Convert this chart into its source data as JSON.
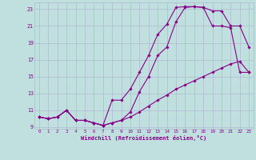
{
  "xlabel": "Windchill (Refroidissement éolien,°C)",
  "xlim": [
    -0.5,
    23.5
  ],
  "ylim": [
    8.8,
    23.8
  ],
  "yticks": [
    9,
    11,
    13,
    15,
    17,
    19,
    21,
    23
  ],
  "xticks": [
    0,
    1,
    2,
    3,
    4,
    5,
    6,
    7,
    8,
    9,
    10,
    11,
    12,
    13,
    14,
    15,
    16,
    17,
    18,
    19,
    20,
    21,
    22,
    23
  ],
  "bg_color": "#c0e0e0",
  "grid_color": "#b0b8d0",
  "line_color": "#880088",
  "line1_x": [
    0,
    1,
    2,
    3,
    4,
    5,
    6,
    7,
    8,
    9,
    10,
    11,
    12,
    13,
    14,
    15,
    16,
    17,
    18,
    19,
    20,
    21,
    22,
    23
  ],
  "line1_y": [
    10.2,
    10.0,
    10.2,
    11.0,
    9.8,
    9.8,
    9.5,
    9.2,
    9.5,
    9.8,
    10.8,
    13.2,
    15.0,
    17.5,
    18.5,
    21.5,
    23.2,
    23.3,
    23.2,
    21.0,
    21.0,
    20.8,
    15.5,
    15.5
  ],
  "line2_x": [
    0,
    1,
    2,
    3,
    4,
    5,
    6,
    7,
    8,
    9,
    10,
    11,
    12,
    13,
    14,
    15,
    16,
    17,
    18,
    19,
    20,
    21,
    22,
    23
  ],
  "line2_y": [
    10.2,
    10.0,
    10.2,
    11.0,
    9.8,
    9.8,
    9.5,
    9.2,
    12.2,
    12.2,
    13.5,
    15.5,
    17.5,
    20.0,
    21.2,
    23.2,
    23.3,
    23.3,
    23.2,
    22.8,
    22.8,
    21.0,
    21.0,
    18.5
  ],
  "line3_x": [
    0,
    1,
    2,
    3,
    4,
    5,
    6,
    7,
    8,
    9,
    10,
    11,
    12,
    13,
    14,
    15,
    16,
    17,
    18,
    19,
    20,
    21,
    22,
    23
  ],
  "line3_y": [
    10.2,
    10.0,
    10.2,
    11.0,
    9.8,
    9.8,
    9.5,
    9.2,
    9.5,
    9.8,
    10.2,
    10.8,
    11.5,
    12.2,
    12.8,
    13.5,
    14.0,
    14.5,
    15.0,
    15.5,
    16.0,
    16.5,
    16.8,
    15.5
  ],
  "marker_size": 1.8,
  "line_width": 0.8
}
